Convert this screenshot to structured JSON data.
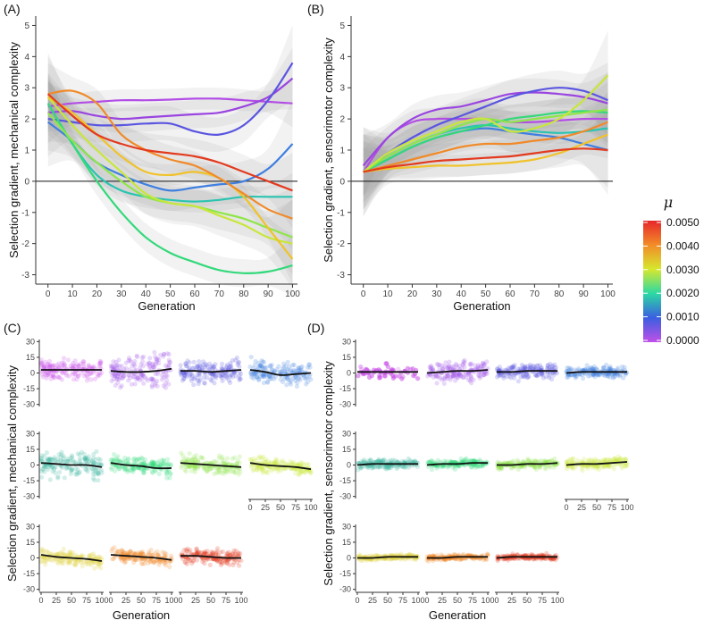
{
  "chart_data": [
    {
      "panel_label": "(A)",
      "type": "line",
      "ylabel": "Selection gradient, mechanical complexity",
      "xlabel": "Generation",
      "xlim": [
        -5,
        102
      ],
      "ylim": [
        -3.3,
        5.3
      ],
      "x_ticks": [
        0,
        10,
        20,
        30,
        40,
        50,
        60,
        70,
        80,
        90,
        100
      ],
      "y_ticks": [
        -3,
        -2,
        -1,
        0,
        1,
        2,
        3,
        4,
        5
      ],
      "hline": 0,
      "x": [
        0,
        10,
        20,
        30,
        40,
        50,
        60,
        70,
        80,
        90,
        100
      ],
      "series": [
        {
          "name": "0.0000",
          "color": "#b24ee5",
          "values": [
            2.4,
            2.5,
            2.55,
            2.6,
            2.6,
            2.62,
            2.65,
            2.65,
            2.6,
            2.55,
            2.5
          ]
        },
        {
          "name": "0.0005",
          "color": "#9a45e0",
          "values": [
            2.2,
            2.25,
            2.1,
            2.0,
            2.05,
            2.1,
            2.15,
            2.2,
            2.4,
            2.7,
            3.3
          ]
        },
        {
          "name": "0.0010",
          "color": "#5a55e0",
          "values": [
            2.0,
            1.9,
            1.8,
            1.8,
            1.85,
            1.85,
            1.6,
            1.5,
            1.8,
            2.6,
            3.8
          ]
        },
        {
          "name": "0.0015",
          "color": "#3f7fe0",
          "values": [
            1.9,
            1.3,
            0.6,
            0.2,
            -0.1,
            -0.3,
            -0.2,
            -0.1,
            0.0,
            0.4,
            1.2
          ]
        },
        {
          "name": "0.0020",
          "color": "#2ac4b0",
          "values": [
            2.5,
            1.2,
            0.2,
            -0.3,
            -0.5,
            -0.6,
            -0.65,
            -0.6,
            -0.5,
            -0.5,
            -0.5
          ]
        },
        {
          "name": "0.0025",
          "color": "#33d97a",
          "values": [
            2.5,
            1.2,
            0.0,
            -1.0,
            -1.8,
            -2.3,
            -2.6,
            -2.85,
            -2.95,
            -2.9,
            -2.7
          ]
        },
        {
          "name": "0.0030",
          "color": "#8fe54a",
          "values": [
            2.2,
            1.3,
            0.6,
            0.0,
            -0.5,
            -0.7,
            -0.8,
            -1.0,
            -1.2,
            -1.5,
            -1.8
          ]
        },
        {
          "name": "0.0035",
          "color": "#c8e63c",
          "values": [
            2.7,
            1.8,
            1.0,
            0.3,
            -0.4,
            -0.7,
            -0.8,
            -1.1,
            -1.4,
            -1.8,
            -2.0
          ]
        },
        {
          "name": "0.0040",
          "color": "#f0c22a",
          "values": [
            2.7,
            2.2,
            1.5,
            0.8,
            0.3,
            0.2,
            0.3,
            0.1,
            -0.5,
            -1.5,
            -2.5
          ]
        },
        {
          "name": "0.0045",
          "color": "#f08a2a",
          "values": [
            2.8,
            2.9,
            2.5,
            1.5,
            1.0,
            0.7,
            0.5,
            0.1,
            -0.4,
            -0.9,
            -1.2
          ]
        },
        {
          "name": "0.0050",
          "color": "#e33a1e",
          "values": [
            2.8,
            2.1,
            1.5,
            1.2,
            1.0,
            0.9,
            0.8,
            0.6,
            0.3,
            0.0,
            -0.3
          ]
        }
      ]
    },
    {
      "panel_label": "(B)",
      "type": "line",
      "ylabel": "Selection gradient, sensorimotor complexity",
      "xlabel": "Generation",
      "xlim": [
        -5,
        102
      ],
      "ylim": [
        -3.3,
        5.3
      ],
      "x_ticks": [
        0,
        10,
        20,
        30,
        40,
        50,
        60,
        70,
        80,
        90,
        100
      ],
      "y_ticks": [
        -3,
        -2,
        -1,
        0,
        1,
        2,
        3,
        4,
        5
      ],
      "hline": 0,
      "x": [
        0,
        10,
        20,
        30,
        40,
        50,
        60,
        70,
        80,
        90,
        100
      ],
      "series": [
        {
          "name": "0.0000",
          "color": "#b24ee5",
          "values": [
            0.3,
            1.4,
            1.9,
            2.0,
            2.0,
            2.0,
            1.9,
            1.9,
            1.95,
            2.0,
            2.0
          ]
        },
        {
          "name": "0.0005",
          "color": "#9a45e0",
          "values": [
            0.5,
            1.4,
            2.0,
            2.3,
            2.4,
            2.6,
            2.8,
            2.85,
            2.8,
            2.7,
            2.5
          ]
        },
        {
          "name": "0.0010",
          "color": "#5a55e0",
          "values": [
            0.3,
            0.9,
            1.4,
            1.8,
            2.1,
            2.4,
            2.7,
            2.9,
            3.0,
            2.9,
            2.6
          ]
        },
        {
          "name": "0.0015",
          "color": "#3f7fe0",
          "values": [
            0.3,
            0.7,
            1.1,
            1.4,
            1.6,
            1.7,
            1.6,
            1.5,
            1.4,
            1.2,
            1.0
          ]
        },
        {
          "name": "0.0020",
          "color": "#2ac4b0",
          "values": [
            0.3,
            0.8,
            1.2,
            1.5,
            1.7,
            1.8,
            1.7,
            1.6,
            1.55,
            1.6,
            1.7
          ]
        },
        {
          "name": "0.0025",
          "color": "#33d97a",
          "values": [
            0.3,
            0.7,
            1.1,
            1.4,
            1.6,
            1.8,
            2.0,
            2.1,
            2.2,
            2.25,
            2.2
          ]
        },
        {
          "name": "0.0030",
          "color": "#8fe54a",
          "values": [
            0.3,
            0.8,
            1.2,
            1.5,
            1.8,
            2.0,
            1.9,
            2.0,
            2.1,
            2.2,
            2.3
          ]
        },
        {
          "name": "0.0035",
          "color": "#c8e63c",
          "values": [
            0.3,
            0.9,
            1.3,
            1.6,
            1.9,
            2.0,
            1.6,
            1.7,
            2.0,
            2.6,
            3.4
          ]
        },
        {
          "name": "0.0040",
          "color": "#f0c22a",
          "values": [
            0.3,
            0.4,
            0.45,
            0.5,
            0.5,
            0.55,
            0.6,
            0.7,
            0.9,
            1.2,
            1.5
          ]
        },
        {
          "name": "0.0045",
          "color": "#f08a2a",
          "values": [
            0.3,
            0.5,
            0.7,
            0.9,
            1.1,
            1.2,
            1.2,
            1.3,
            1.4,
            1.6,
            1.9
          ]
        },
        {
          "name": "0.0050",
          "color": "#e33a1e",
          "values": [
            0.3,
            0.45,
            0.55,
            0.65,
            0.7,
            0.75,
            0.8,
            0.9,
            1.0,
            1.05,
            1.0
          ]
        }
      ]
    },
    {
      "panel_label": "(C)",
      "type": "scatter",
      "ylabel": "Selection gradient, mechanical complexity",
      "xlabel": "Generation",
      "facet_y_ticks": [
        -30,
        -15,
        0,
        15,
        30
      ],
      "facet_x_ticks": [
        0,
        25,
        50,
        75,
        100
      ],
      "facet_ylim": [
        -32,
        32
      ],
      "x": [
        0,
        25,
        50,
        75,
        100
      ],
      "facets": [
        {
          "name": "0.0000",
          "color": "#c94fe6",
          "spread": 7,
          "trend": [
            3,
            3,
            3,
            3,
            3
          ]
        },
        {
          "name": "0.0005",
          "color": "#a050e6",
          "spread": 11,
          "trend": [
            2,
            1,
            1,
            2,
            4
          ]
        },
        {
          "name": "0.0010",
          "color": "#5a55e0",
          "spread": 8,
          "trend": [
            2,
            2,
            1,
            2,
            3
          ]
        },
        {
          "name": "0.0015",
          "color": "#3f7fe0",
          "spread": 8,
          "trend": [
            3,
            1,
            -2,
            -1,
            0
          ]
        },
        {
          "name": "0.0020",
          "color": "#3ab8a0",
          "spread": 9,
          "trend": [
            2,
            1,
            0,
            0,
            -2
          ]
        },
        {
          "name": "0.0025",
          "color": "#33d97a",
          "spread": 6,
          "trend": [
            2,
            0,
            -1,
            -3,
            -3
          ]
        },
        {
          "name": "0.0030",
          "color": "#8fe54a",
          "spread": 6,
          "trend": [
            2,
            1,
            0,
            -1,
            -2
          ]
        },
        {
          "name": "0.0035",
          "color": "#c8e63c",
          "spread": 5,
          "trend": [
            2,
            0,
            -1,
            -2,
            -4
          ]
        },
        {
          "name": "0.0040",
          "color": "#e0d040",
          "spread": 5,
          "trend": [
            3,
            1,
            0,
            -1,
            -3
          ]
        },
        {
          "name": "0.0045",
          "color": "#f08a2a",
          "spread": 5,
          "trend": [
            3,
            2,
            1,
            0,
            -2
          ]
        },
        {
          "name": "0.0050",
          "color": "#e33a1e",
          "spread": 5,
          "trend": [
            2,
            2,
            1,
            0,
            0
          ]
        }
      ]
    },
    {
      "panel_label": "(D)",
      "type": "scatter",
      "ylabel": "Selection gradient, sensorimotor complexity",
      "xlabel": "Generation",
      "facet_y_ticks": [
        -30,
        -15,
        0,
        15,
        30
      ],
      "facet_x_ticks": [
        0,
        25,
        50,
        75,
        100
      ],
      "facet_ylim": [
        -32,
        32
      ],
      "x": [
        0,
        25,
        50,
        75,
        100
      ],
      "facets": [
        {
          "name": "0.0000",
          "color": "#c94fe6",
          "spread": 5,
          "trend": [
            1,
            1,
            1,
            1,
            1
          ]
        },
        {
          "name": "0.0005",
          "color": "#a050e6",
          "spread": 7,
          "trend": [
            0,
            1,
            2,
            2,
            3
          ]
        },
        {
          "name": "0.0010",
          "color": "#5a55e0",
          "spread": 5,
          "trend": [
            1,
            1,
            2,
            2,
            2
          ]
        },
        {
          "name": "0.0015",
          "color": "#3f7fe0",
          "spread": 4,
          "trend": [
            0,
            1,
            1,
            1,
            1
          ]
        },
        {
          "name": "0.0020",
          "color": "#3ab8a0",
          "spread": 3,
          "trend": [
            0,
            1,
            1,
            1,
            1
          ]
        },
        {
          "name": "0.0025",
          "color": "#33d97a",
          "spread": 3,
          "trend": [
            0,
            1,
            1,
            2,
            2
          ]
        },
        {
          "name": "0.0030",
          "color": "#8fe54a",
          "spread": 3,
          "trend": [
            0,
            0,
            1,
            1,
            2
          ]
        },
        {
          "name": "0.0035",
          "color": "#c8e63c",
          "spread": 4,
          "trend": [
            0,
            1,
            1,
            2,
            3
          ]
        },
        {
          "name": "0.0040",
          "color": "#e0d040",
          "spread": 2,
          "trend": [
            0,
            0,
            1,
            1,
            1
          ]
        },
        {
          "name": "0.0045",
          "color": "#f08a2a",
          "spread": 2,
          "trend": [
            0,
            0,
            1,
            1,
            1
          ]
        },
        {
          "name": "0.0050",
          "color": "#e33a1e",
          "spread": 2,
          "trend": [
            0,
            1,
            1,
            1,
            1
          ]
        }
      ]
    }
  ],
  "legend": {
    "title": "μ",
    "labels": [
      "0.0050",
      "0.0040",
      "0.0030",
      "0.0020",
      "0.0010",
      "0.0000"
    ],
    "colors": [
      "#e6272a",
      "#f28c28",
      "#d6e82e",
      "#2bd9a4",
      "#3a5fe0",
      "#c050e8"
    ]
  }
}
